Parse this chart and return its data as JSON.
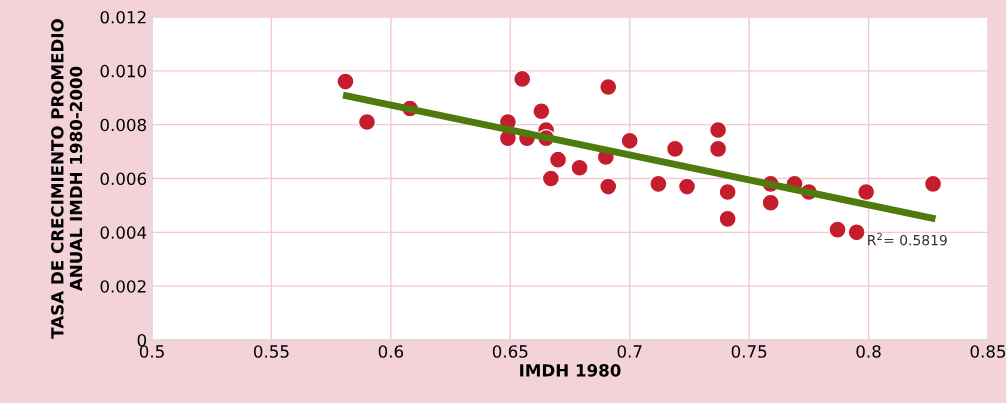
{
  "chart_data": {
    "type": "scatter",
    "xlabel": "IMDH 1980",
    "ylabel": "TASA DE CRECIMIENTO PROMEDIO\nANUAL IMDH 1980-2000",
    "xlim": [
      0.5,
      0.85
    ],
    "ylim": [
      0,
      0.012
    ],
    "xticks": [
      0.5,
      0.55,
      0.6,
      0.65,
      0.7,
      0.75,
      0.8,
      0.85
    ],
    "yticks": [
      0,
      {
        "value": 0.002,
        "label": "0.002"
      },
      {
        "value": 0.004,
        "label": "0.004"
      },
      {
        "value": 0.006,
        "label": "0.006"
      },
      {
        "value": 0.008,
        "label": "0.008"
      },
      {
        "value": 0.01,
        "label": "0.010"
      },
      {
        "value": 0.012,
        "label": "0.012"
      }
    ],
    "grid": true,
    "legend": false,
    "series": [
      {
        "marker": "circle",
        "color": "#c41e2e",
        "x": [
          0.581,
          0.59,
          0.608,
          0.649,
          0.649,
          0.655,
          0.657,
          0.663,
          0.665,
          0.665,
          0.67,
          0.667,
          0.679,
          0.691,
          0.69,
          0.691,
          0.7,
          0.712,
          0.719,
          0.724,
          0.737,
          0.737,
          0.741,
          0.741,
          0.759,
          0.759,
          0.769,
          0.775,
          0.787,
          0.795,
          0.799,
          0.827
        ],
        "values": [
          0.0096,
          0.0081,
          0.0086,
          0.0081,
          0.0075,
          0.0097,
          0.0075,
          0.0085,
          0.0078,
          0.0075,
          0.0067,
          0.006,
          0.0064,
          0.0094,
          0.0068,
          0.0057,
          0.0074,
          0.0058,
          0.0071,
          0.0057,
          0.0078,
          0.0071,
          0.0055,
          0.0045,
          0.0058,
          0.0051,
          0.0058,
          0.0055,
          0.0041,
          0.004,
          0.0055,
          0.0058
        ]
      },
      {
        "type": "line",
        "color": "#4e7a0e",
        "x": [
          0.58,
          0.828
        ],
        "values": [
          0.0091,
          0.0045
        ]
      }
    ],
    "annotations": [
      "R$^{2}$= 0.5819"
    ]
  }
}
